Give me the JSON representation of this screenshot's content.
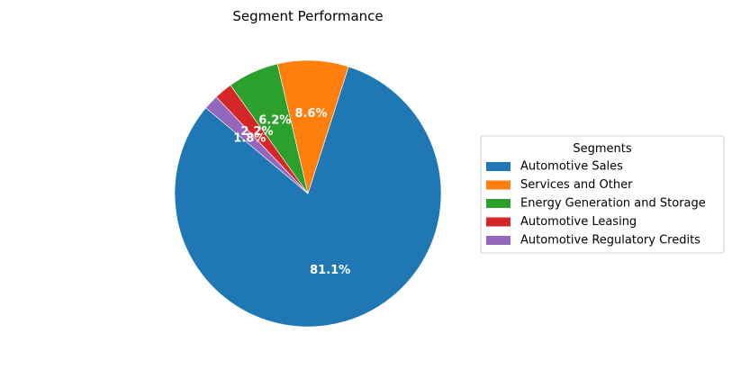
{
  "chart_data": {
    "type": "pie",
    "title": "Segment Performance",
    "legend_title": "Segments",
    "legend_position": "right",
    "start_angle_deg": 140,
    "direction": "counterclockwise",
    "slices": [
      {
        "label": "Automotive Sales",
        "value": 81.1,
        "pct_label": "81.1%",
        "color": "#1f77b4"
      },
      {
        "label": "Services and Other",
        "value": 8.6,
        "pct_label": "8.6%",
        "color": "#ff7f0e"
      },
      {
        "label": "Energy Generation and Storage",
        "value": 6.2,
        "pct_label": "6.2%",
        "color": "#2ca02c"
      },
      {
        "label": "Automotive Leasing",
        "value": 2.2,
        "pct_label": "2.2%",
        "color": "#d62728"
      },
      {
        "label": "Automotive Regulatory Credits",
        "value": 1.8,
        "pct_label": "1.8%",
        "color": "#9467bd"
      }
    ]
  }
}
